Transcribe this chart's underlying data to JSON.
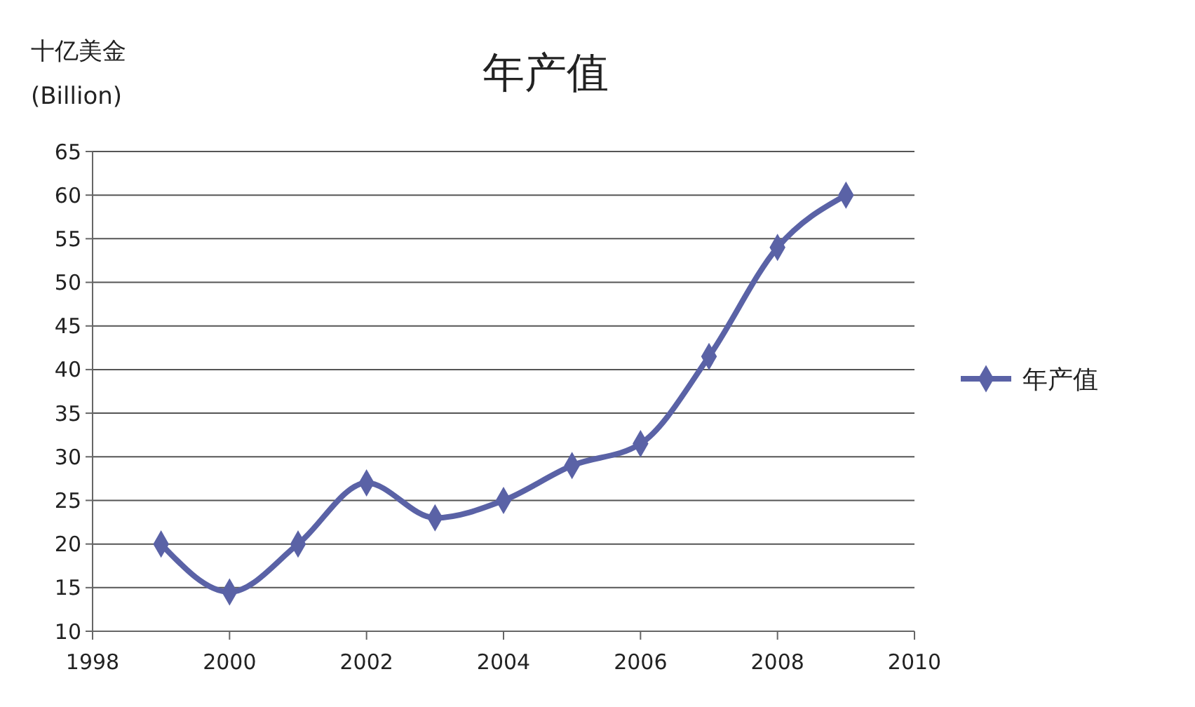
{
  "chart_data": {
    "type": "line",
    "title": "年产值",
    "ylabel": "十亿美金\n(Billion)",
    "x": [
      1999,
      2000,
      2001,
      2002,
      2003,
      2004,
      2005,
      2006,
      2007,
      2008,
      2009
    ],
    "series": [
      {
        "name": "年产值",
        "color": "#5a62a6",
        "values": [
          20,
          14.5,
          20,
          27,
          23,
          25,
          29,
          31.5,
          41.5,
          54,
          60
        ]
      }
    ],
    "xlim": [
      1998,
      2010
    ],
    "xticks": [
      1998,
      2000,
      2002,
      2004,
      2006,
      2008,
      2010
    ],
    "ylim": [
      10,
      65
    ],
    "yticks": [
      10,
      15,
      20,
      25,
      30,
      35,
      40,
      45,
      50,
      55,
      60,
      65
    ],
    "grid": "y",
    "legend": "right",
    "marker": "diamond",
    "line_style": "solid"
  }
}
